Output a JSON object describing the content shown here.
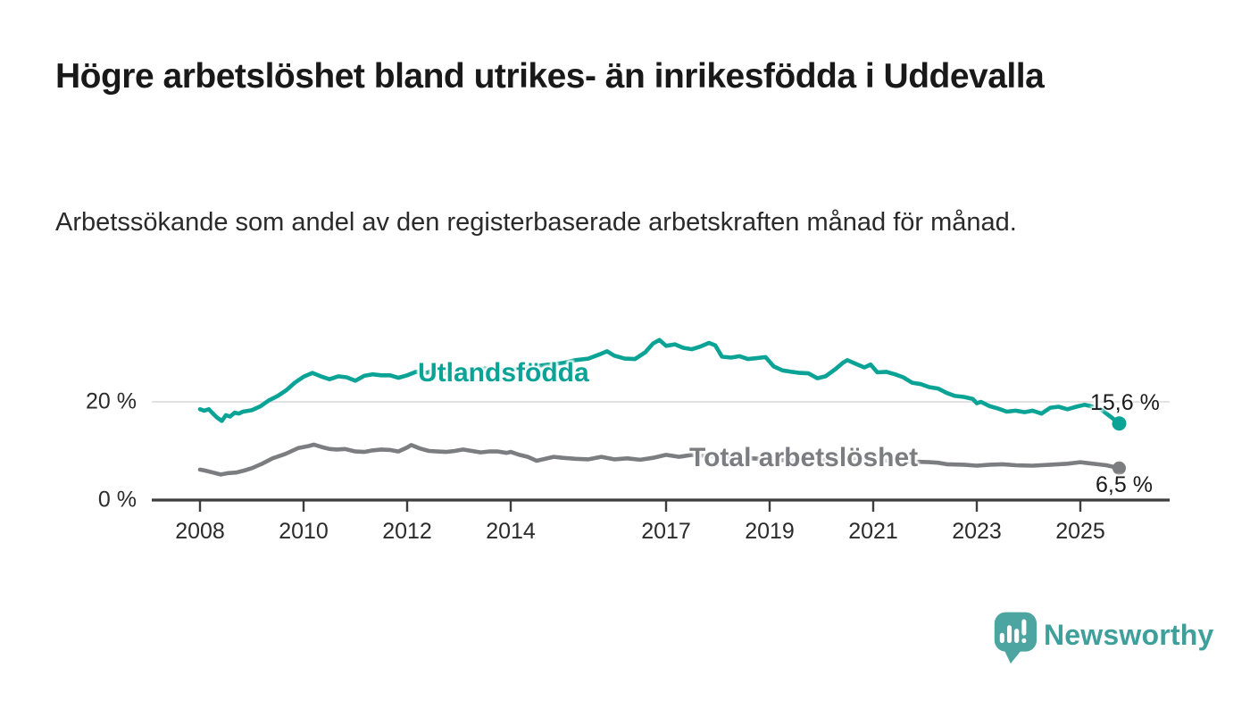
{
  "header": {
    "title": "Högre arbetslöshet bland utrikes- än inrikesfödda i Uddevalla",
    "subtitle": "Arbetssökande som andel av den registerbaserade arbetskraften månad för månad."
  },
  "chart_data": {
    "type": "line",
    "title": "Högre arbetslöshet bland utrikes- än inrikesfödda i Uddevalla",
    "subtitle": "Arbetssökande som andel av den registerbaserade arbetskraften månad för månad.",
    "unit": "%",
    "grid": "horizontal-20-only",
    "legend_position": "inline-labels-on-lines",
    "x_axis": {
      "tick_years": [
        2008,
        2010,
        2012,
        2014,
        2017,
        2019,
        2021,
        2023,
        2025
      ],
      "tick_labels": [
        "2008",
        "2010",
        "2012",
        "2014",
        "2017",
        "2019",
        "2021",
        "2023",
        "2025"
      ],
      "range": [
        2007.1,
        2026.7
      ]
    },
    "y_axis": {
      "ticks": [
        {
          "value": 0,
          "label": "0 %"
        },
        {
          "value": 20,
          "label": "20 %"
        }
      ],
      "range": [
        0,
        36
      ]
    },
    "series": [
      {
        "name": "Utlandsfödda",
        "color": "#0aa396",
        "end_value": 15.6,
        "end_label": "15,6 %",
        "points": [
          [
            2008.0,
            18.5
          ],
          [
            2008.08,
            18.2
          ],
          [
            2008.17,
            18.5
          ],
          [
            2008.25,
            17.6
          ],
          [
            2008.33,
            16.8
          ],
          [
            2008.42,
            16.1
          ],
          [
            2008.5,
            17.3
          ],
          [
            2008.58,
            17.0
          ],
          [
            2008.67,
            17.8
          ],
          [
            2008.75,
            17.6
          ],
          [
            2008.83,
            18.0
          ],
          [
            2009.0,
            18.3
          ],
          [
            2009.17,
            19.1
          ],
          [
            2009.33,
            20.3
          ],
          [
            2009.5,
            21.2
          ],
          [
            2009.67,
            22.4
          ],
          [
            2009.83,
            23.9
          ],
          [
            2010.0,
            25.1
          ],
          [
            2010.17,
            25.9
          ],
          [
            2010.33,
            25.2
          ],
          [
            2010.5,
            24.6
          ],
          [
            2010.67,
            25.2
          ],
          [
            2010.83,
            25.0
          ],
          [
            2011.0,
            24.3
          ],
          [
            2011.17,
            25.3
          ],
          [
            2011.33,
            25.6
          ],
          [
            2011.5,
            25.4
          ],
          [
            2011.67,
            25.4
          ],
          [
            2011.83,
            24.9
          ],
          [
            2012.0,
            25.4
          ],
          [
            2012.17,
            26.1
          ],
          [
            2012.33,
            25.8
          ],
          [
            2012.5,
            26.3
          ],
          [
            2012.67,
            26.0
          ],
          [
            2012.83,
            25.7
          ],
          [
            2013.0,
            26.0
          ],
          [
            2013.25,
            26.4
          ],
          [
            2013.5,
            26.8
          ],
          [
            2013.75,
            26.4
          ],
          [
            2014.0,
            26.6
          ],
          [
            2014.25,
            27.0
          ],
          [
            2014.5,
            27.3
          ],
          [
            2014.75,
            27.6
          ],
          [
            2015.0,
            27.9
          ],
          [
            2015.25,
            28.5
          ],
          [
            2015.5,
            28.8
          ],
          [
            2015.7,
            29.6
          ],
          [
            2015.86,
            30.3
          ],
          [
            2016.0,
            29.4
          ],
          [
            2016.2,
            28.8
          ],
          [
            2016.4,
            28.7
          ],
          [
            2016.6,
            30.1
          ],
          [
            2016.75,
            31.9
          ],
          [
            2016.87,
            32.6
          ],
          [
            2017.0,
            31.4
          ],
          [
            2017.17,
            31.7
          ],
          [
            2017.33,
            31.0
          ],
          [
            2017.5,
            30.7
          ],
          [
            2017.67,
            31.3
          ],
          [
            2017.83,
            32.0
          ],
          [
            2017.95,
            31.5
          ],
          [
            2018.08,
            29.2
          ],
          [
            2018.25,
            29.0
          ],
          [
            2018.42,
            29.3
          ],
          [
            2018.58,
            28.7
          ],
          [
            2018.75,
            28.9
          ],
          [
            2018.92,
            29.1
          ],
          [
            2019.08,
            27.2
          ],
          [
            2019.25,
            26.4
          ],
          [
            2019.42,
            26.1
          ],
          [
            2019.58,
            25.9
          ],
          [
            2019.75,
            25.8
          ],
          [
            2019.92,
            24.8
          ],
          [
            2020.08,
            25.2
          ],
          [
            2020.25,
            26.5
          ],
          [
            2020.42,
            28.0
          ],
          [
            2020.5,
            28.5
          ],
          [
            2020.67,
            27.7
          ],
          [
            2020.83,
            27.0
          ],
          [
            2020.95,
            27.6
          ],
          [
            2021.08,
            26.0
          ],
          [
            2021.25,
            26.1
          ],
          [
            2021.42,
            25.6
          ],
          [
            2021.58,
            25.0
          ],
          [
            2021.75,
            23.9
          ],
          [
            2021.92,
            23.6
          ],
          [
            2022.08,
            23.0
          ],
          [
            2022.25,
            22.7
          ],
          [
            2022.42,
            21.8
          ],
          [
            2022.58,
            21.2
          ],
          [
            2022.75,
            21.0
          ],
          [
            2022.92,
            20.6
          ],
          [
            2023.0,
            19.7
          ],
          [
            2023.08,
            20.0
          ],
          [
            2023.25,
            19.1
          ],
          [
            2023.42,
            18.6
          ],
          [
            2023.58,
            18.0
          ],
          [
            2023.75,
            18.2
          ],
          [
            2023.92,
            17.9
          ],
          [
            2024.08,
            18.2
          ],
          [
            2024.25,
            17.6
          ],
          [
            2024.42,
            18.8
          ],
          [
            2024.58,
            19.0
          ],
          [
            2024.75,
            18.5
          ],
          [
            2024.92,
            19.0
          ],
          [
            2025.08,
            19.4
          ],
          [
            2025.25,
            19.0
          ],
          [
            2025.42,
            18.3
          ],
          [
            2025.58,
            17.0
          ],
          [
            2025.75,
            15.6
          ]
        ]
      },
      {
        "name": "Total arbetslöshet",
        "color": "#7c7d81",
        "end_value": 6.5,
        "end_label": "6,5 %",
        "points": [
          [
            2008.0,
            6.2
          ],
          [
            2008.1,
            6.0
          ],
          [
            2008.25,
            5.6
          ],
          [
            2008.4,
            5.2
          ],
          [
            2008.55,
            5.5
          ],
          [
            2008.7,
            5.6
          ],
          [
            2008.85,
            6.0
          ],
          [
            2009.0,
            6.5
          ],
          [
            2009.2,
            7.4
          ],
          [
            2009.4,
            8.5
          ],
          [
            2009.65,
            9.4
          ],
          [
            2009.9,
            10.6
          ],
          [
            2010.1,
            11.0
          ],
          [
            2010.2,
            11.3
          ],
          [
            2010.35,
            10.8
          ],
          [
            2010.5,
            10.4
          ],
          [
            2010.65,
            10.3
          ],
          [
            2010.8,
            10.4
          ],
          [
            2011.0,
            9.9
          ],
          [
            2011.17,
            9.8
          ],
          [
            2011.33,
            10.1
          ],
          [
            2011.5,
            10.3
          ],
          [
            2011.67,
            10.2
          ],
          [
            2011.83,
            9.9
          ],
          [
            2012.0,
            10.7
          ],
          [
            2012.08,
            11.2
          ],
          [
            2012.25,
            10.5
          ],
          [
            2012.42,
            10.0
          ],
          [
            2012.58,
            9.9
          ],
          [
            2012.75,
            9.8
          ],
          [
            2012.92,
            10.0
          ],
          [
            2013.08,
            10.3
          ],
          [
            2013.25,
            10.0
          ],
          [
            2013.42,
            9.7
          ],
          [
            2013.58,
            9.9
          ],
          [
            2013.75,
            9.9
          ],
          [
            2013.92,
            9.6
          ],
          [
            2014.0,
            9.8
          ],
          [
            2014.17,
            9.2
          ],
          [
            2014.33,
            8.8
          ],
          [
            2014.5,
            8.0
          ],
          [
            2014.67,
            8.4
          ],
          [
            2014.83,
            8.8
          ],
          [
            2015.0,
            8.6
          ],
          [
            2015.25,
            8.4
          ],
          [
            2015.5,
            8.3
          ],
          [
            2015.75,
            8.8
          ],
          [
            2016.0,
            8.3
          ],
          [
            2016.25,
            8.5
          ],
          [
            2016.5,
            8.2
          ],
          [
            2016.75,
            8.6
          ],
          [
            2017.0,
            9.2
          ],
          [
            2017.25,
            8.8
          ],
          [
            2017.5,
            9.2
          ],
          [
            2017.75,
            9.0
          ],
          [
            2018.0,
            8.8
          ],
          [
            2018.33,
            8.7
          ],
          [
            2018.67,
            8.5
          ],
          [
            2019.0,
            8.3
          ],
          [
            2019.33,
            8.1
          ],
          [
            2019.67,
            8.0
          ],
          [
            2020.0,
            8.2
          ],
          [
            2020.33,
            8.5
          ],
          [
            2020.5,
            8.6
          ],
          [
            2020.83,
            8.4
          ],
          [
            2021.17,
            8.1
          ],
          [
            2021.5,
            7.9
          ],
          [
            2021.83,
            7.8
          ],
          [
            2022.08,
            7.7
          ],
          [
            2022.25,
            7.6
          ],
          [
            2022.42,
            7.3
          ],
          [
            2022.75,
            7.2
          ],
          [
            2023.0,
            7.0
          ],
          [
            2023.25,
            7.2
          ],
          [
            2023.5,
            7.3
          ],
          [
            2023.75,
            7.1
          ],
          [
            2024.08,
            7.0
          ],
          [
            2024.42,
            7.2
          ],
          [
            2024.75,
            7.4
          ],
          [
            2025.0,
            7.7
          ],
          [
            2025.17,
            7.5
          ],
          [
            2025.33,
            7.3
          ],
          [
            2025.5,
            7.1
          ],
          [
            2025.75,
            6.5
          ]
        ]
      }
    ]
  },
  "footer": {
    "brand": "Newsworthy",
    "logo_icon": "speech-bubble-bar-chart-icon",
    "brand_color": "#3f9f9a",
    "logo_fill": "#4ca5a0"
  }
}
